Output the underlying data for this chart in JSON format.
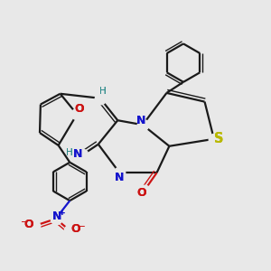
{
  "background_color": "#e8e8e8",
  "bond_color": "#1a1a1a",
  "N_color": "#1414cc",
  "O_color": "#cc1414",
  "S_color": "#b8b800",
  "H_color": "#2e8b8b",
  "figsize": [
    3.0,
    3.0
  ],
  "dpi": 100,
  "xlim": [
    0,
    10
  ],
  "ylim": [
    0,
    10
  ]
}
